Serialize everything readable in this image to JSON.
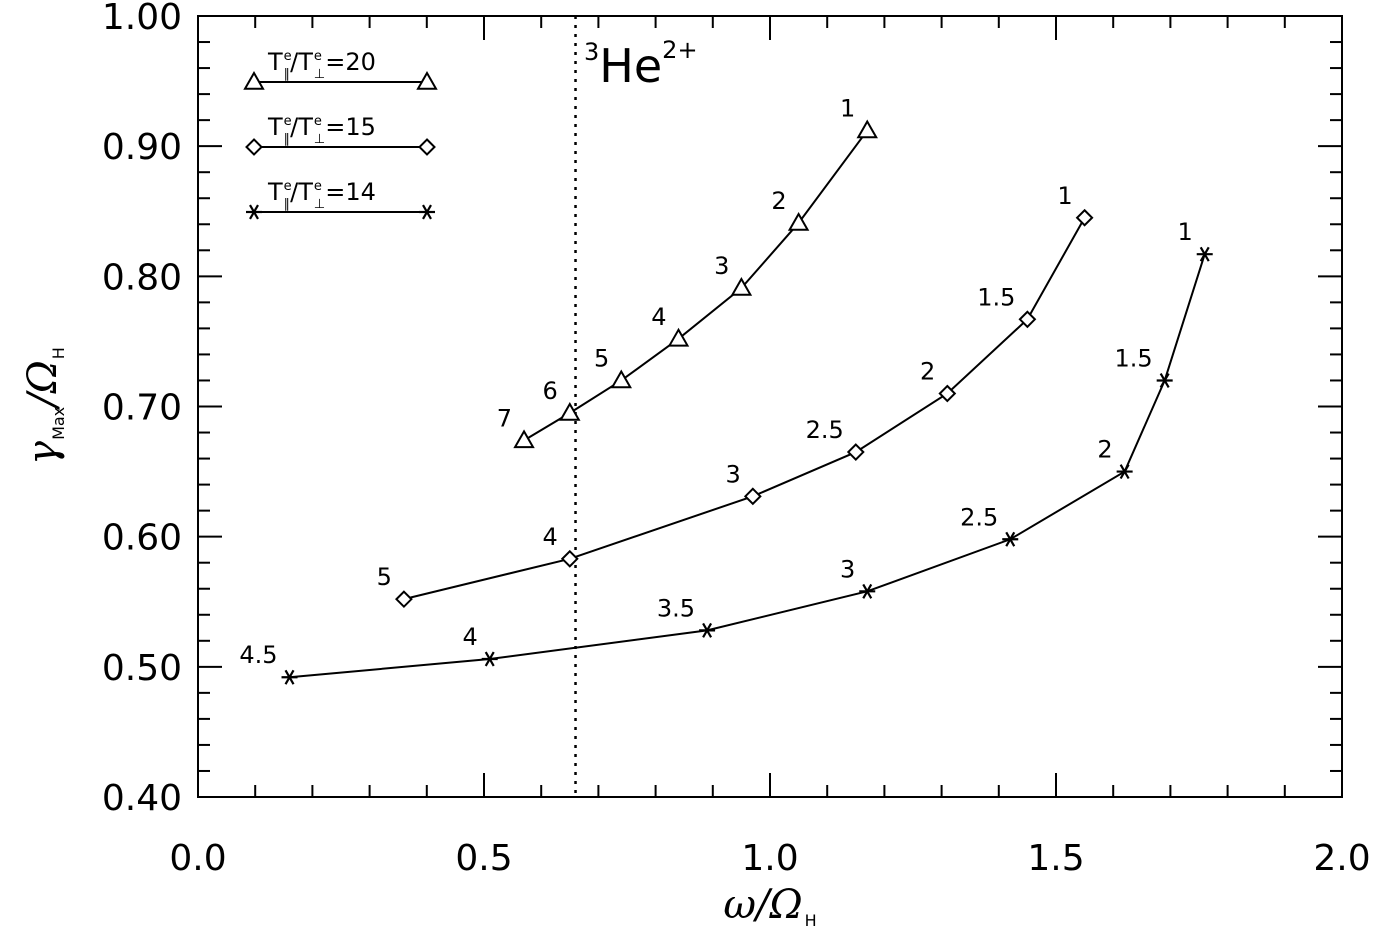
{
  "chart_data": {
    "type": "line",
    "xlabel": "ω/Ω",
    "xlabel_sub": "H",
    "ylabel": "γ/Ω",
    "ylabel_sub_max": "Max",
    "ylabel_sub_h": "H",
    "xlim": [
      0.0,
      2.0
    ],
    "ylim": [
      0.4,
      1.0
    ],
    "xticks": [
      0.0,
      0.5,
      1.0,
      1.5,
      2.0
    ],
    "xtick_labels": [
      "0.0",
      "0.5",
      "1.0",
      "1.5",
      "2.0"
    ],
    "yticks": [
      0.4,
      0.5,
      0.6,
      0.7,
      0.8,
      0.9,
      1.0
    ],
    "ytick_labels": [
      "0.40",
      "0.50",
      "0.60",
      "0.70",
      "0.80",
      "0.90",
      "1.00"
    ],
    "annotation": {
      "ion_isotope": "3",
      "ion_name": "He",
      "ion_charge": "2+",
      "dotted_line_x": 0.66
    },
    "legend_placement": "top-left",
    "grid": false,
    "series": [
      {
        "name": "T∥e/T⊥e=20",
        "legend_ratio": "=20",
        "marker": "triangle",
        "x": [
          0.57,
          0.65,
          0.74,
          0.84,
          0.95,
          1.05,
          1.17
        ],
        "y": [
          0.674,
          0.695,
          0.72,
          0.752,
          0.791,
          0.841,
          0.912
        ],
        "labels": [
          "7",
          "6",
          "5",
          "4",
          "3",
          "2",
          "1"
        ]
      },
      {
        "name": "T∥e/T⊥e=15",
        "legend_ratio": "=15",
        "marker": "diamond",
        "x": [
          0.36,
          0.65,
          0.97,
          1.15,
          1.31,
          1.45,
          1.55
        ],
        "y": [
          0.552,
          0.583,
          0.631,
          0.665,
          0.71,
          0.767,
          0.845
        ],
        "labels": [
          "5",
          "4",
          "3",
          "2.5",
          "2",
          "1.5",
          "1"
        ]
      },
      {
        "name": "T∥e/T⊥e=14",
        "legend_ratio": "=14",
        "marker": "asterisk",
        "x": [
          0.16,
          0.51,
          0.89,
          1.17,
          1.42,
          1.62,
          1.69,
          1.76
        ],
        "y": [
          0.492,
          0.506,
          0.528,
          0.558,
          0.598,
          0.65,
          0.72,
          0.817
        ],
        "labels": [
          "4.5",
          "4",
          "3.5",
          "3",
          "2.5",
          "2",
          "1.5",
          "1"
        ]
      }
    ]
  }
}
